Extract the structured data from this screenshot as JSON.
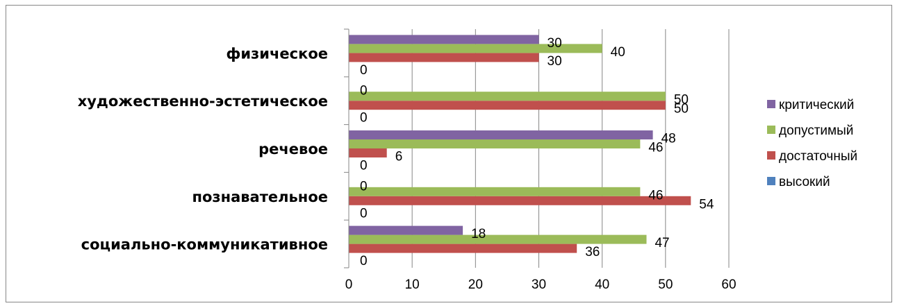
{
  "chart_data": {
    "type": "bar",
    "orientation": "horizontal",
    "categories": [
      "социально-коммуникативное",
      "познавательное",
      "речевое",
      "художественно-эстетическое",
      "физическое"
    ],
    "series": [
      {
        "name": "высокий",
        "color": "#4F81BD",
        "values": [
          0,
          0,
          0,
          0,
          0
        ]
      },
      {
        "name": "достаточный",
        "color": "#C0504D",
        "values": [
          36,
          54,
          6,
          50,
          30
        ]
      },
      {
        "name": "допустимый",
        "color": "#9BBB59",
        "values": [
          47,
          46,
          46,
          50,
          40
        ]
      },
      {
        "name": "критический",
        "color": "#8064A2",
        "values": [
          18,
          0,
          48,
          0,
          30
        ]
      }
    ],
    "xlim": [
      0,
      60
    ],
    "xticks": [
      0,
      10,
      20,
      30,
      40,
      50,
      60
    ],
    "grid": "vertical",
    "legend_position": "right",
    "legend_order": [
      "критический",
      "допустимый",
      "достаточный",
      "высокий"
    ],
    "data_labels": true
  }
}
